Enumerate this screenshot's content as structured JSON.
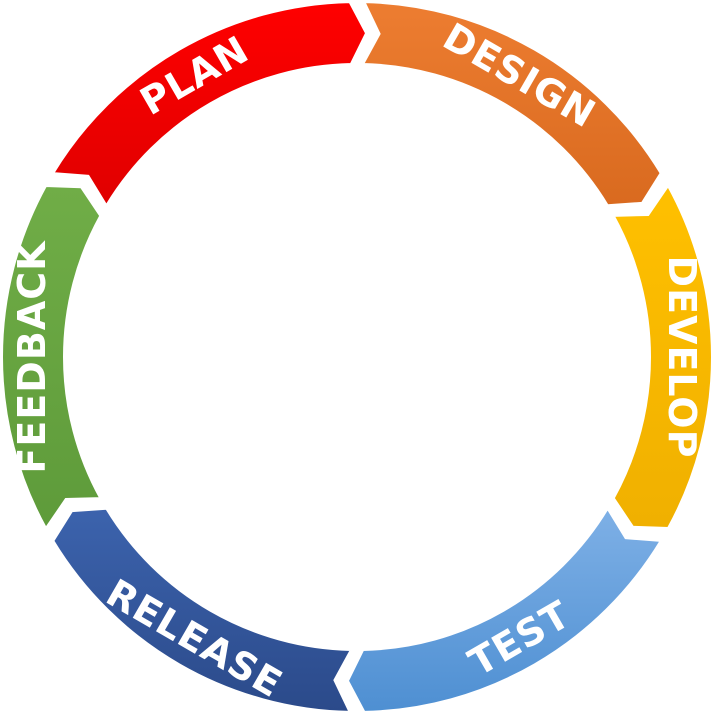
{
  "diagram": {
    "type": "cycle",
    "segments": [
      {
        "label": "PLAN",
        "color": "#ff0000",
        "shade": "#e00000"
      },
      {
        "label": "DESIGN",
        "color": "#ed7d31",
        "shade": "#d96a1f"
      },
      {
        "label": "DEVELOP",
        "color": "#ffc000",
        "shade": "#f0b000"
      },
      {
        "label": "TEST",
        "color": "#7eb0e6",
        "shade": "#4e8fd2"
      },
      {
        "label": "RELEASE",
        "color": "#3c63ad",
        "shade": "#2b4a8a"
      },
      {
        "label": "FEEDBACK",
        "color": "#70ad47",
        "shade": "#5e9b3a"
      }
    ],
    "text_color": "#ffffff"
  }
}
